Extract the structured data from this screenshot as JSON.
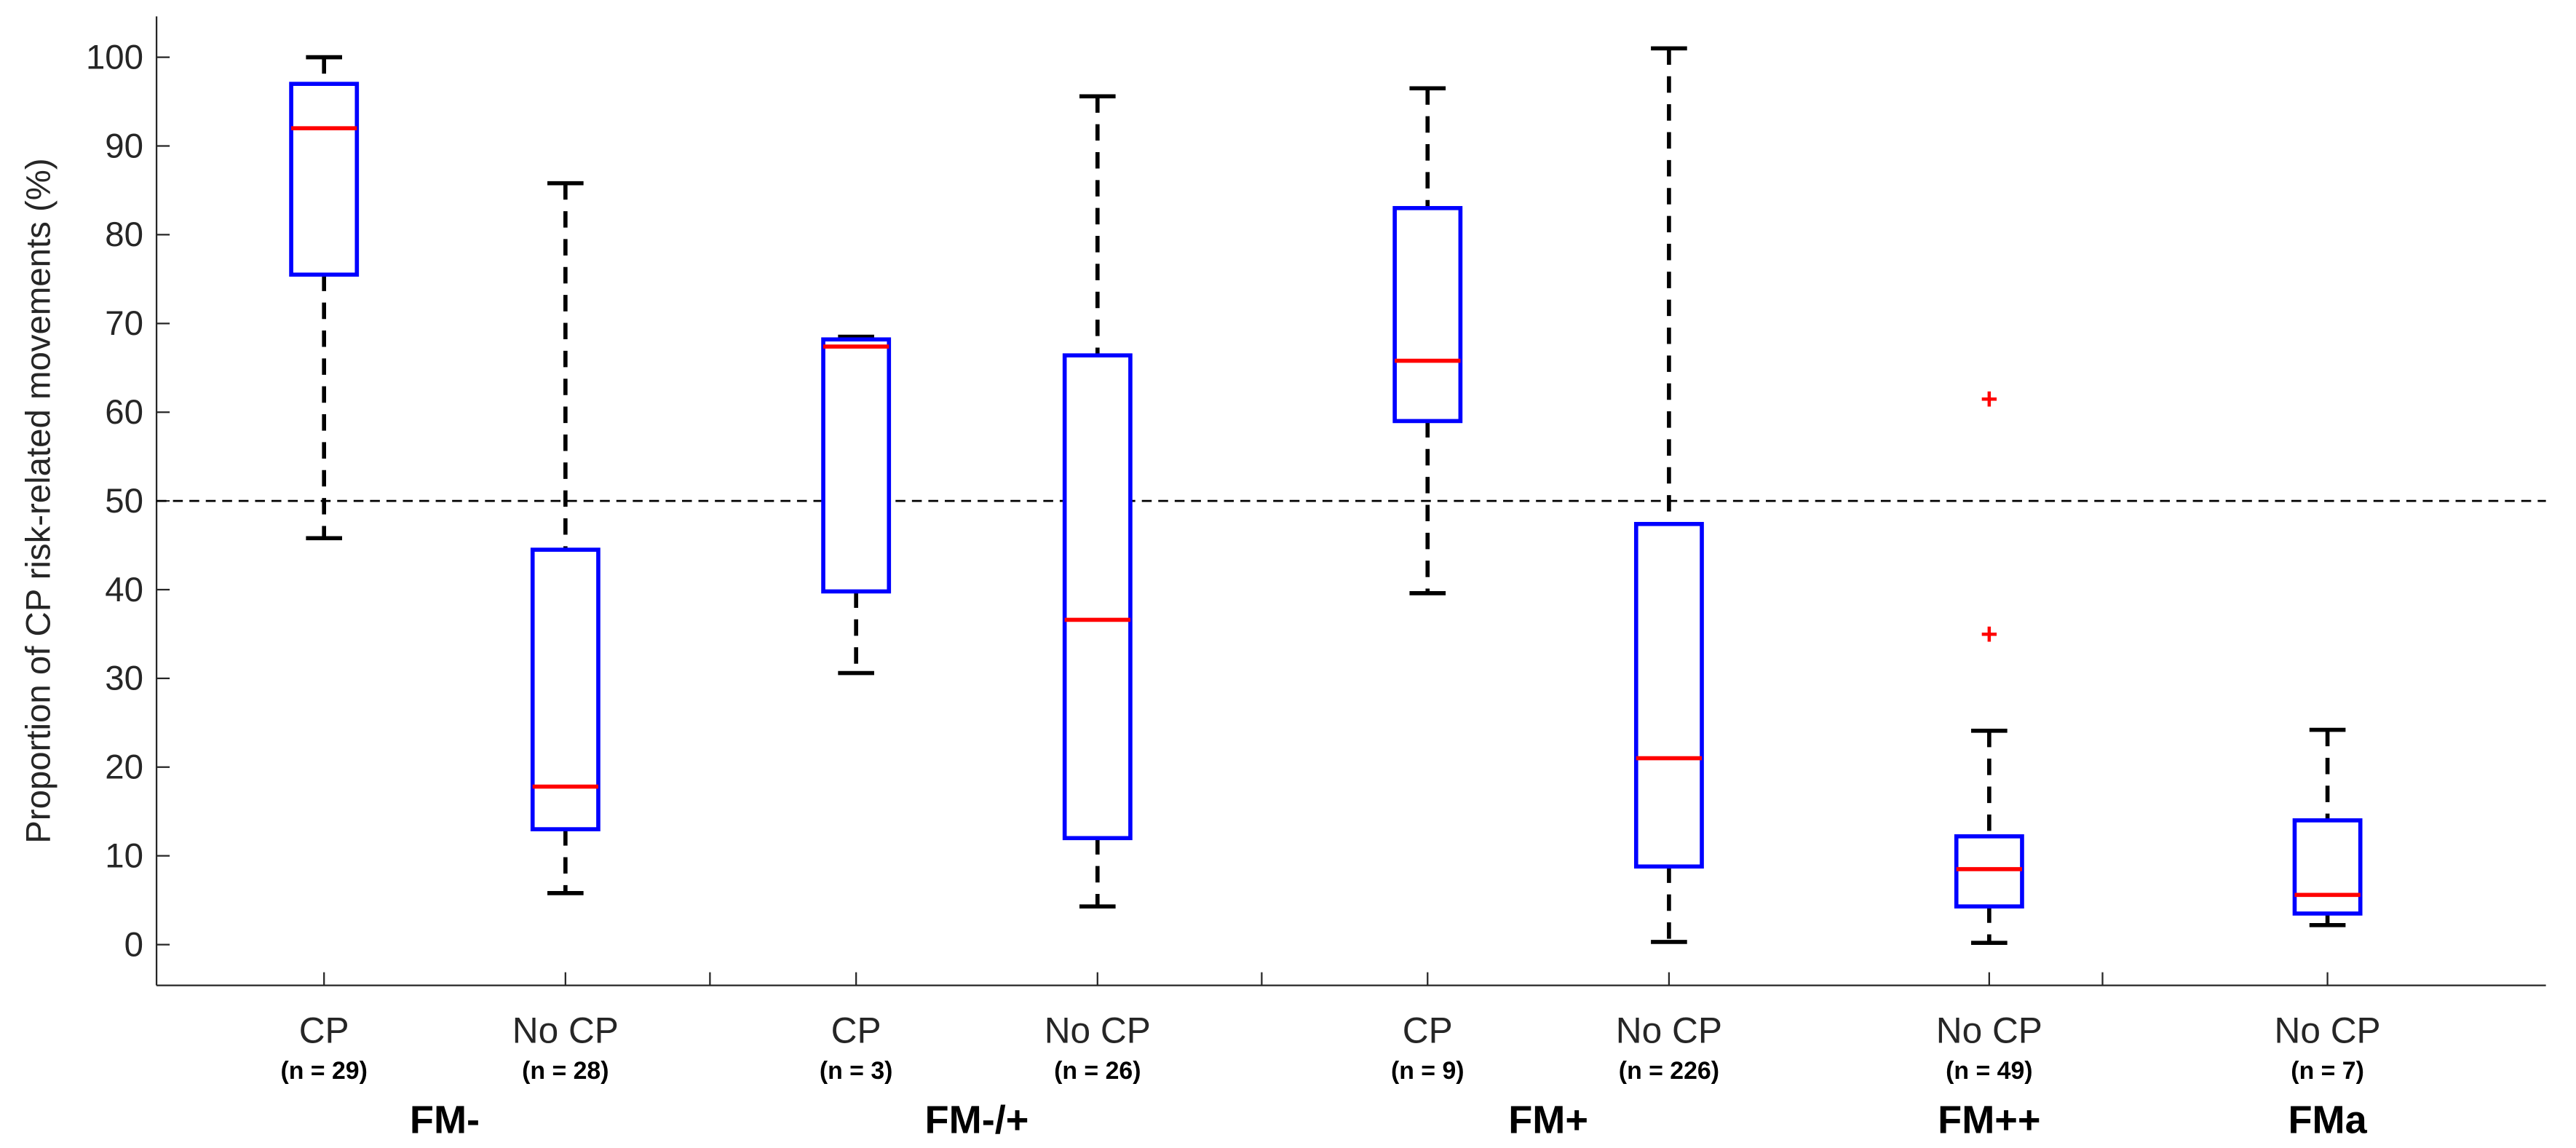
{
  "chart_data": {
    "type": "boxplot",
    "ylabel": "Proportion of CP risk-related movements (%)",
    "ylim": [
      -4.6,
      104.6
    ],
    "yticks": [
      0,
      10,
      20,
      30,
      40,
      50,
      60,
      70,
      80,
      90,
      100
    ],
    "reference_line": 50,
    "grid": false,
    "colors": {
      "box": "#0000ff",
      "median": "#ff0000",
      "whisker": "#000000",
      "outlier": "#ff0000"
    },
    "groups": [
      {
        "label": "FM-",
        "boxes": [
          0,
          1
        ]
      },
      {
        "label": "FM-/+",
        "boxes": [
          2,
          3
        ]
      },
      {
        "label": "FM+",
        "boxes": [
          4,
          5
        ]
      },
      {
        "label": "FM++",
        "boxes": [
          6
        ]
      },
      {
        "label": "FMa",
        "boxes": [
          7
        ]
      }
    ],
    "boxes": [
      {
        "category": "CP",
        "n": "(n = 29)",
        "whisker_low": 45.8,
        "q1": 75.5,
        "median": 92,
        "q3": 97,
        "whisker_high": 100,
        "outliers": []
      },
      {
        "category": "No CP",
        "n": "(n = 28)",
        "whisker_low": 5.8,
        "q1": 13,
        "median": 17.8,
        "q3": 44.5,
        "whisker_high": 85.8,
        "outliers": []
      },
      {
        "category": "CP",
        "n": "(n = 3)",
        "whisker_low": 30.6,
        "q1": 39.8,
        "median": 67.4,
        "q3": 68.2,
        "whisker_high": 68.5,
        "outliers": []
      },
      {
        "category": "No CP",
        "n": "(n = 26)",
        "whisker_low": 4.3,
        "q1": 12,
        "median": 36.6,
        "q3": 66.4,
        "whisker_high": 95.6,
        "outliers": []
      },
      {
        "category": "CP",
        "n": "(n = 9)",
        "whisker_low": 39.6,
        "q1": 59,
        "median": 65.8,
        "q3": 83,
        "whisker_high": 96.5,
        "outliers": []
      },
      {
        "category": "No CP",
        "n": "(n = 226)",
        "whisker_low": 0.3,
        "q1": 8.8,
        "median": 21,
        "q3": 47.4,
        "whisker_high": 101,
        "outliers": []
      },
      {
        "category": "No CP",
        "n": "(n = 49)",
        "whisker_low": 0.2,
        "q1": 4.3,
        "median": 8.5,
        "q3": 12.2,
        "whisker_high": 24.1,
        "outliers": [
          61.5,
          35
        ]
      },
      {
        "category": "No CP",
        "n": "(n = 7)",
        "whisker_low": 2.2,
        "q1": 3.5,
        "median": 5.6,
        "q3": 14,
        "whisker_high": 24.2,
        "outliers": []
      }
    ]
  }
}
